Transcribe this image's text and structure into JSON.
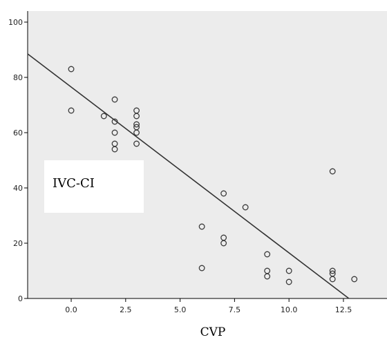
{
  "chart_data": {
    "type": "scatter",
    "xlabel": "CVP",
    "ylabel": "IVC-CI",
    "xlim": [
      -2,
      14.5
    ],
    "ylim": [
      0,
      104
    ],
    "x_ticks": [
      "0.0",
      "2.5",
      "5.0",
      "7.5",
      "10.0",
      "12.5"
    ],
    "y_ticks": [
      "0",
      "20",
      "40",
      "60",
      "80",
      "100"
    ],
    "grid": false,
    "fit_line": {
      "intercept": 76.5,
      "slope": -6.0
    },
    "colors": {
      "plot_bg": "#ececec",
      "marker": "#3a3a3a",
      "line": "#333333"
    },
    "points": [
      {
        "x": 0,
        "y": 83
      },
      {
        "x": 0,
        "y": 68
      },
      {
        "x": 1.5,
        "y": 66
      },
      {
        "x": 2,
        "y": 72
      },
      {
        "x": 2,
        "y": 64
      },
      {
        "x": 2,
        "y": 60
      },
      {
        "x": 2,
        "y": 56
      },
      {
        "x": 2,
        "y": 54
      },
      {
        "x": 3,
        "y": 68
      },
      {
        "x": 3,
        "y": 66
      },
      {
        "x": 3,
        "y": 63
      },
      {
        "x": 3,
        "y": 62
      },
      {
        "x": 3,
        "y": 60
      },
      {
        "x": 3,
        "y": 56
      },
      {
        "x": 6,
        "y": 26
      },
      {
        "x": 6,
        "y": 11
      },
      {
        "x": 7,
        "y": 38
      },
      {
        "x": 7,
        "y": 22
      },
      {
        "x": 7,
        "y": 20
      },
      {
        "x": 8,
        "y": 33
      },
      {
        "x": 9,
        "y": 16
      },
      {
        "x": 9,
        "y": 10
      },
      {
        "x": 9,
        "y": 8
      },
      {
        "x": 10,
        "y": 10
      },
      {
        "x": 10,
        "y": 6
      },
      {
        "x": 12,
        "y": 46
      },
      {
        "x": 12,
        "y": 10
      },
      {
        "x": 12,
        "y": 9
      },
      {
        "x": 12,
        "y": 7
      },
      {
        "x": 13,
        "y": 7
      }
    ]
  }
}
